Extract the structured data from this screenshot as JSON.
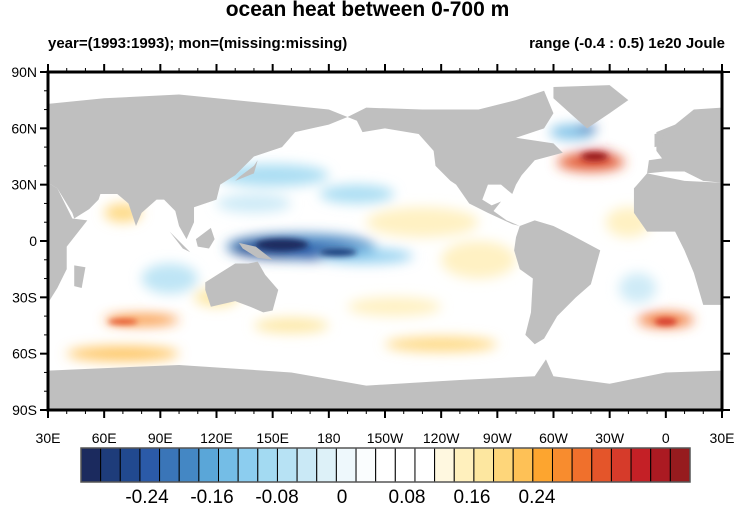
{
  "title": "ocean heat between 0-700 m",
  "subtitle_left": "year=(1993:1993); mon=(missing:missing)",
  "subtitle_right": "range (-0.4 : 0.5) 1e20 Joule",
  "lat_labels": [
    "90N",
    "60N",
    "30N",
    "0",
    "30S",
    "60S",
    "90S"
  ],
  "lon_labels": [
    "30E",
    "60E",
    "90E",
    "120E",
    "150E",
    "180",
    "150W",
    "120W",
    "90W",
    "60W",
    "30W",
    "0",
    "30E"
  ],
  "colorbar": {
    "colors": [
      "#1b2a5e",
      "#1e3c7a",
      "#21498f",
      "#2b5aa8",
      "#3a75b8",
      "#4487c4",
      "#5aa6d8",
      "#74bde6",
      "#8ccdef",
      "#a3daf2",
      "#b7e2f4",
      "#cae9f6",
      "#ddf1f8",
      "#eef8fc",
      "#fafdfe",
      "#ffffff",
      "#ffffff",
      "#ffffff",
      "#fff8e0",
      "#fff0bd",
      "#fde7a0",
      "#fed67a",
      "#fec156",
      "#fda52f",
      "#f88c2e",
      "#f0702c",
      "#e4552a",
      "#d63b2a",
      "#c42026",
      "#ab1a22",
      "#961b1e"
    ],
    "labels": [
      "-0.24",
      "-0.16",
      "-0.08",
      "0",
      "0.08",
      "0.16",
      "0.24"
    ],
    "label_values": [
      -0.24,
      -0.16,
      -0.08,
      0,
      0.08,
      0.16,
      0.24
    ]
  },
  "colors": {
    "land": "#bfbfbf",
    "ocean": "#ffffff"
  }
}
